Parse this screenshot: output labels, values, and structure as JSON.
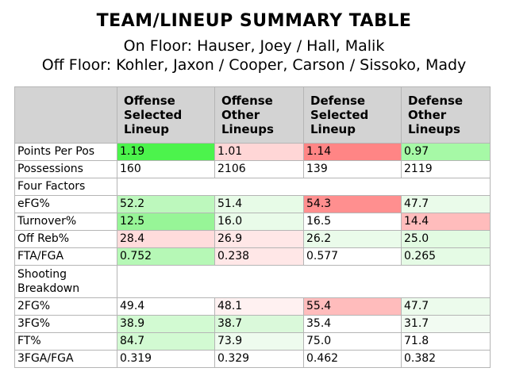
{
  "title": "TEAM/LINEUP SUMMARY TABLE",
  "on_floor": "On Floor: Hauser, Joey / Hall, Malik",
  "off_floor": "Off Floor: Kohler, Jaxon / Cooper, Carson / Sissoko, Mady",
  "headers": [
    "Offense Selected Lineup",
    "Offense Other Lineups",
    "Defense Selected Lineup",
    "Defense Other Lineups"
  ],
  "rows": [
    {
      "label": "Points Per Pos",
      "values": [
        "1.19",
        "1.01",
        "1.14",
        "0.97"
      ],
      "colors": [
        "#4cf34c",
        "#ffd6d6",
        "#ff8585",
        "#a6f9a6"
      ]
    },
    {
      "label": "Possessions",
      "values": [
        "160",
        "2106",
        "139",
        "2119"
      ],
      "colors": [
        "#ffffff",
        "#ffffff",
        "#ffffff",
        "#ffffff"
      ]
    },
    {
      "label": "Four Factors",
      "section": true
    },
    {
      "label": "eFG%",
      "values": [
        "52.2",
        "51.4",
        "54.3",
        "47.7"
      ],
      "colors": [
        "#bdf8bd",
        "#e7fbe7",
        "#ff8f8f",
        "#eafbea"
      ]
    },
    {
      "label": "Turnover%",
      "values": [
        "12.5",
        "16.0",
        "16.5",
        "14.4"
      ],
      "colors": [
        "#97f597",
        "#e9fbe9",
        "#ffffff",
        "#ffbcbc"
      ]
    },
    {
      "label": "Off Reb%",
      "values": [
        "28.4",
        "26.9",
        "26.2",
        "25.0"
      ],
      "colors": [
        "#ffdcdc",
        "#ffe7e7",
        "#eafbea",
        "#e2fbe2"
      ]
    },
    {
      "label": "FTA/FGA",
      "values": [
        "0.752",
        "0.238",
        "0.577",
        "0.265"
      ],
      "colors": [
        "#b6f8b6",
        "#ffe7e7",
        "#ffffff",
        "#e5fbe5"
      ]
    },
    {
      "label": "Shooting Breakdown",
      "section2": true
    },
    {
      "label": "2FG%",
      "values": [
        "49.4",
        "48.1",
        "55.4",
        "47.7"
      ],
      "colors": [
        "#ffffff",
        "#fff1f1",
        "#ffbcbc",
        "#ecfbec"
      ]
    },
    {
      "label": "3FG%",
      "values": [
        "38.9",
        "38.7",
        "35.4",
        "31.7"
      ],
      "colors": [
        "#d2fad2",
        "#daf9da",
        "#ffffff",
        "#f2fbf2"
      ]
    },
    {
      "label": "FT%",
      "values": [
        "84.7",
        "73.9",
        "75.0",
        "71.8"
      ],
      "colors": [
        "#d2fad2",
        "#eefbee",
        "#ffffff",
        "#ffffff"
      ]
    },
    {
      "label": "3FGA/FGA",
      "values": [
        "0.319",
        "0.329",
        "0.462",
        "0.382"
      ],
      "colors": [
        "#ffffff",
        "#ffffff",
        "#ffffff",
        "#ffffff"
      ]
    }
  ]
}
